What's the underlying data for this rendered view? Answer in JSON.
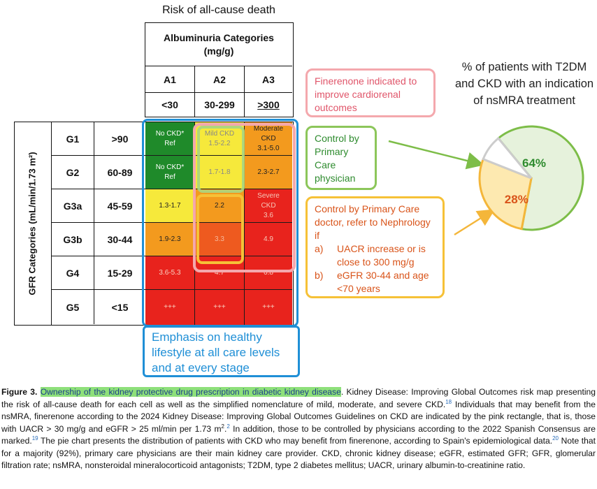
{
  "title": "Risk of all-cause death",
  "albuminuria": {
    "header": "Albuminuria Categories (mg/g)",
    "columns": [
      {
        "code": "A1",
        "range": "<30"
      },
      {
        "code": "A2",
        "range": "30-299"
      },
      {
        "code": "A3",
        "range": ">300"
      }
    ]
  },
  "gfr": {
    "axis_label": "GFR Categories (mL/min/1.73 m²)",
    "rows": [
      {
        "code": "G1",
        "range": ">90",
        "cells": [
          [
            "No CKD*",
            "Ref"
          ],
          [
            "Mild CKD",
            "1.5-2.2"
          ],
          [
            "Moderate",
            "CKD",
            "3.1-5.0"
          ]
        ]
      },
      {
        "code": "G2",
        "range": "60-89",
        "cells": [
          [
            "No CKD*",
            "Ref"
          ],
          [
            "1.7-1.8"
          ],
          [
            "2.3-2.7"
          ]
        ]
      },
      {
        "code": "G3a",
        "range": "45-59",
        "cells": [
          [
            "1.3-1.7"
          ],
          [
            "2.2"
          ],
          [
            "Severe",
            "CKD",
            "3.6"
          ]
        ]
      },
      {
        "code": "G3b",
        "range": "30-44",
        "cells": [
          [
            "1.9-2.3"
          ],
          [
            "3.3"
          ],
          [
            "4.9"
          ]
        ]
      },
      {
        "code": "G4",
        "range": "15-29",
        "cells": [
          [
            "3.6-5.3"
          ],
          [
            "4.7"
          ],
          [
            "6.8"
          ]
        ]
      },
      {
        "code": "G5",
        "range": "<15",
        "cells": [
          [
            "+++"
          ],
          [
            "+++"
          ],
          [
            "+++"
          ]
        ]
      }
    ]
  },
  "callouts": {
    "finerenone": "Finerenone indicated to improve cardiorenal outcomes",
    "primary": "Control by Primary Care physician",
    "nephro_intro": "Control by Primary Care doctor, refer to Nephrology if",
    "nephro_a_marker": "a)",
    "nephro_a": "UACR increase or is close to 300 mg/g",
    "nephro_b_marker": "b)",
    "nephro_b": "eGFR 30-44 and age <70 years",
    "lifestyle": "Emphasis on healthy lifestyle at all care levels and at every stage"
  },
  "pie": {
    "title": "% of patients with T2DM and CKD with an indication of nsMRA treatment",
    "slices": [
      {
        "label": "64%",
        "value": 64,
        "color": "#e6f2dc",
        "border": "#7dbd48"
      },
      {
        "label": "28%",
        "value": 28,
        "color": "#fde9b0",
        "border": "#f4b63a"
      },
      {
        "label": "",
        "value": 8,
        "color": "#ffffff",
        "border": "#cccccc"
      }
    ]
  },
  "caption": {
    "figure_label": "Figure 3.",
    "highlight": "Ownership of the kidney protective drug prescription in diabetic kidney disease",
    "s1": ". Kidney Disease: Improving Global Outcomes risk map presenting the risk of all-cause death for each cell as well as the simplified nomenclature of mild, moderate, and severe CKD.",
    "ref1": "18",
    "s2": " Individuals that may benefit from the nsMRA, finerenone according to the 2024 Kidney Disease: Improving Global Outcomes Guidelines on CKD are indicated by the pink rectangle, that is, those with UACR > 30 mg/g and eGFR > 25 ml/min per 1.73 m",
    "sup_sq": "2",
    "s2b": ".",
    "ref2": "2",
    "s3": " In addition, those to be controlled by physicians according to the 2022 Spanish Consensus are marked.",
    "ref3": "19",
    "s4": " The pie chart presents the distribution of patients with CKD who may benefit from finerenone, according to Spain's epidemiological data.",
    "ref4": "20",
    "s5": " Note that for a majority (92%), primary care physicians are their main kidney care provider. CKD, chronic kidney disease; eGFR, estimated GFR; GFR, glomerular filtration rate; nsMRA, nonsteroidal mineralocorticoid antagonists; T2DM, type 2 diabetes mellitus; UACR, urinary albumin-to-creatinine ratio."
  }
}
